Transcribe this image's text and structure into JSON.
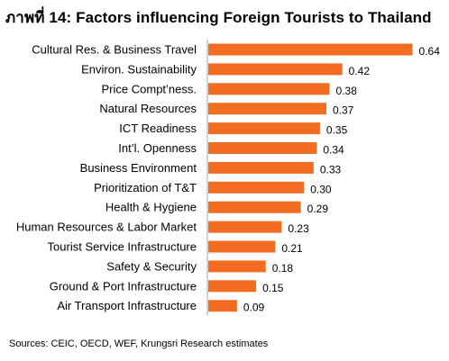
{
  "chart_data": {
    "type": "bar",
    "orientation": "horizontal",
    "title": "ภาพที่ 14: Factors influencing Foreign Tourists to Thailand",
    "categories": [
      "Cultural Res. & Business Travel",
      "Environ. Sustainability",
      "Price Compt’ness.",
      "Natural Resources",
      "ICT Readiness",
      "Int’l. Openness",
      "Business Environment",
      "Prioritization of T&T",
      "Health & Hygiene",
      "Human Resources & Labor Market",
      "Tourist Service Infrastructure",
      "Safety & Security",
      "Ground & Port Infrastructure",
      "Air Transport Infrastructure"
    ],
    "values": [
      0.64,
      0.42,
      0.38,
      0.37,
      0.35,
      0.34,
      0.33,
      0.3,
      0.29,
      0.23,
      0.21,
      0.18,
      0.15,
      0.09
    ],
    "value_labels": [
      "0.64",
      "0.42",
      "0.38",
      "0.37",
      "0.35",
      "0.34",
      "0.33",
      "0.30",
      "0.29",
      "0.23",
      "0.21",
      "0.18",
      "0.15",
      "0.09"
    ],
    "xlim": [
      0,
      0.7
    ],
    "grid": false,
    "bar_color": "#F26D21",
    "source": "Sources: CEIC, OECD, WEF, Krungsri Research estimates"
  }
}
